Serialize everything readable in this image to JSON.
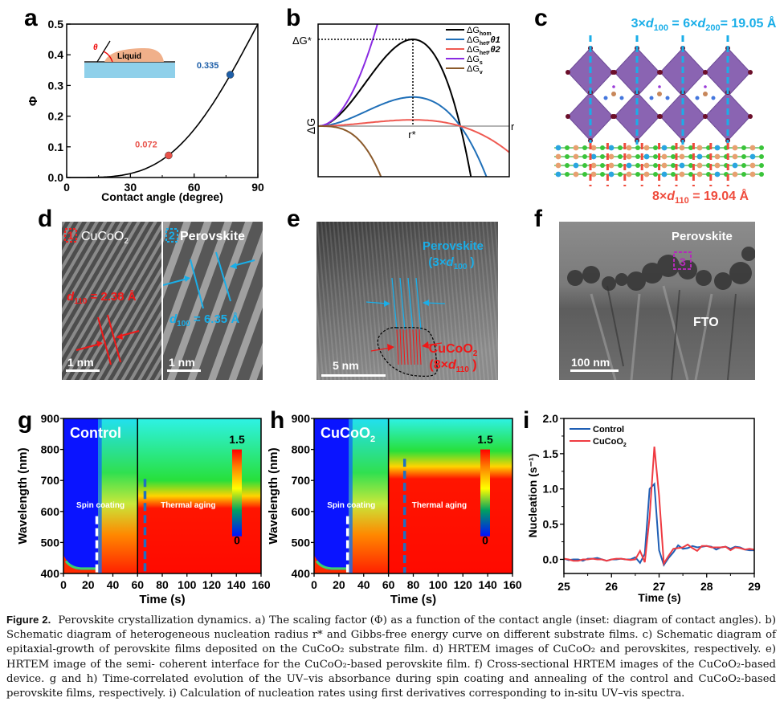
{
  "figure": {
    "panel_labels": {
      "a": "a",
      "b": "b",
      "c": "c",
      "d": "d",
      "e": "e",
      "f": "f",
      "g": "g",
      "h": "h",
      "i": "i"
    },
    "caption": {
      "title": "Figure 2.",
      "lines": [
        "Perovskite crystallization dynamics. a) The scaling factor (Φ) as a function of the contact angle (inset: diagram of contact angles). b) Schematic",
        "diagram of heterogeneous nucleation radius r* and Gibbs-free energy curve on different substrate films. c) Schematic diagram of epitaxial-growth of",
        "perovskite films deposited on the CuCoO₂ substrate film. d) HRTEM images of CuCoO₂ and perovskites, respectively. e) HRTEM image of the semi-",
        "coherent interface for the CuCoO₂-based perovskite film. f) Cross-sectional HRTEM images of the CuCoO₂-based device. g and h) Time-correlated",
        "evolution of the UV–vis absorbance during spin coating and annealing of the control and CuCoO₂-based perovskite films, respectively. i) Calculation of",
        "nucleation rates using first derivatives corresponding to in-situ UV–vis spectra."
      ]
    }
  },
  "chart_data": [
    {
      "id": "a",
      "type": "line",
      "title": "",
      "xlabel": "Contact angle (degree)",
      "ylabel": "Φ",
      "xlim": [
        0,
        90
      ],
      "ylim": [
        0,
        0.5
      ],
      "xticks": [
        "0",
        "30",
        "60",
        "90"
      ],
      "yticks": [
        "0.0",
        "0.1",
        "0.2",
        "0.3",
        "0.4",
        "0.5"
      ],
      "xtick_values": [
        0,
        30,
        60,
        90
      ],
      "ytick_values": [
        0,
        0.1,
        0.2,
        0.3,
        0.4,
        0.5
      ],
      "curve": "Φ = (2+cosθ)(1−cosθ)²/4",
      "points": [
        {
          "x": 48,
          "y": 0.072,
          "label": "0.072",
          "color": "#e8524a"
        },
        {
          "x": 77,
          "y": 0.335,
          "label": "0.335",
          "color": "#1f5fa8"
        }
      ],
      "inset": {
        "theta_label": "θ",
        "liquid_label": "Liquid"
      }
    },
    {
      "id": "b",
      "type": "line",
      "title": "",
      "xlabel": "r",
      "ylabel": "ΔG",
      "annotations": {
        "peak_label": "ΔG*",
        "radius_label": "r*"
      },
      "series": [
        {
          "name": "ΔG_hom",
          "label_main": "ΔG",
          "label_sub": "hom",
          "label_extra": "",
          "color": "#000000",
          "peak": 1.0
        },
        {
          "name": "ΔG_het,θ1",
          "label_main": "ΔG",
          "label_sub": "het",
          "label_extra": ",θ1",
          "color": "#1f6fb8",
          "peak": 0.335
        },
        {
          "name": "ΔG_het,θ2",
          "label_main": "ΔG",
          "label_sub": "het",
          "label_extra": ",θ2",
          "color": "#ef5a52",
          "peak": 0.072
        },
        {
          "name": "ΔG_s",
          "label_main": "ΔG",
          "label_sub": "s",
          "label_extra": "",
          "color": "#8a2be2"
        },
        {
          "name": "ΔG_v",
          "label_main": "ΔG",
          "label_sub": "v",
          "label_extra": "",
          "color": "#8b5a2b"
        }
      ],
      "legend_position": "top-right"
    },
    {
      "id": "g",
      "type": "heatmap",
      "sample_label": "Control",
      "xlabel": "Time (s)",
      "ylabel": "Wavelength (nm)",
      "xlim": [
        0,
        160
      ],
      "ylim": [
        400,
        900
      ],
      "xticks": [
        "0",
        "20",
        "40",
        "60",
        "80",
        "100",
        "120",
        "140",
        "160"
      ],
      "yticks": [
        "400",
        "500",
        "600",
        "700",
        "800",
        "900"
      ],
      "colorbar": {
        "min": "0",
        "max": "1.5"
      },
      "regions": [
        "Spin coating",
        "Thermal aging"
      ],
      "divider_time": 60,
      "spin_marker_time": 27,
      "aging_marker_time": 66,
      "absorption_onset_aging_nm": 650
    },
    {
      "id": "h",
      "type": "heatmap",
      "sample_label": "CuCoO",
      "sample_sub": "2",
      "xlabel": "Time (s)",
      "ylabel": "Wavelength (nm)",
      "xlim": [
        0,
        160
      ],
      "ylim": [
        400,
        900
      ],
      "xticks": [
        "0",
        "20",
        "40",
        "60",
        "80",
        "100",
        "120",
        "140",
        "160"
      ],
      "yticks": [
        "400",
        "500",
        "600",
        "700",
        "800",
        "900"
      ],
      "colorbar": {
        "min": "0",
        "max": "1.5"
      },
      "regions": [
        "Spin coating",
        "Thermal aging"
      ],
      "divider_time": 60,
      "spin_marker_time": 27,
      "aging_marker_time": 73,
      "absorption_onset_aging_nm": 745
    },
    {
      "id": "i",
      "type": "line",
      "xlabel": "Time (s)",
      "ylabel": "Nucleation (s⁻¹)",
      "xlim": [
        25,
        29
      ],
      "ylim": [
        -0.2,
        2.0
      ],
      "xticks": [
        "25",
        "26",
        "27",
        "28",
        "29"
      ],
      "yticks": [
        "0.0",
        "0.5",
        "1.0",
        "1.5",
        "2.0"
      ],
      "xtick_values": [
        25,
        26,
        27,
        28,
        29
      ],
      "ytick_values": [
        0,
        0.5,
        1.0,
        1.5,
        2.0
      ],
      "legend_position": "top-left",
      "x": [
        25.0,
        25.1,
        25.2,
        25.3,
        25.4,
        25.5,
        25.6,
        25.7,
        25.8,
        25.9,
        26.0,
        26.1,
        26.2,
        26.3,
        26.4,
        26.5,
        26.6,
        26.7,
        26.8,
        26.9,
        27.0,
        27.1,
        27.2,
        27.3,
        27.4,
        27.5,
        27.6,
        27.7,
        27.8,
        27.9,
        28.0,
        28.1,
        28.2,
        28.3,
        28.4,
        28.5,
        28.6,
        28.7,
        28.8,
        28.9,
        29.0
      ],
      "series": [
        {
          "name": "Control",
          "color": "#1f5fb5",
          "values": [
            0.01,
            -0.01,
            0.0,
            0.0,
            -0.02,
            0.01,
            0.01,
            0.02,
            0.0,
            -0.02,
            0.0,
            0.0,
            0.01,
            0.0,
            0.0,
            0.03,
            -0.05,
            0.08,
            1.0,
            1.07,
            0.13,
            -0.08,
            0.02,
            0.1,
            0.2,
            0.15,
            0.16,
            0.19,
            0.17,
            0.18,
            0.19,
            0.18,
            0.14,
            0.17,
            0.18,
            0.15,
            0.18,
            0.17,
            0.14,
            0.13,
            0.13
          ]
        },
        {
          "name": "CuCoO₂",
          "name_main": "CuCoO",
          "name_sub": "2",
          "color": "#ef3b42",
          "values": [
            0.01,
            0.0,
            -0.02,
            -0.02,
            0.0,
            0.0,
            0.01,
            0.0,
            0.0,
            -0.02,
            0.0,
            0.01,
            0.01,
            0.0,
            -0.01,
            0.0,
            0.12,
            -0.04,
            0.6,
            1.6,
            0.9,
            -0.06,
            0.05,
            0.15,
            0.16,
            0.17,
            0.21,
            0.16,
            0.12,
            0.19,
            0.19,
            0.17,
            0.17,
            0.17,
            0.18,
            0.13,
            0.17,
            0.16,
            0.14,
            0.15,
            0.14
          ]
        }
      ]
    }
  ],
  "panel_c": {
    "top_label": {
      "part1": "3×",
      "d1": "d",
      "sub1": "100",
      "part2": " = 6×",
      "d2": "d",
      "sub2": "200",
      "part3": "= 19.05 Å"
    },
    "bottom_label": {
      "part1": "8×",
      "d1": "d",
      "sub1": "110",
      "part3": " = 19.04 Å"
    },
    "colors": {
      "perovskite": "#1aaee8",
      "substrate": "#ef4b3c"
    }
  },
  "panel_d": {
    "left": {
      "box_num": "1",
      "title": "CuCoO",
      "title_sub": "2",
      "spacing_d": "d",
      "spacing_sub": "110",
      "spacing_val": " = 2.38 Å",
      "scale": "1 nm"
    },
    "right": {
      "box_num": "2",
      "title": "Perovskite",
      "spacing_d": "d",
      "spacing_sub": "100",
      "spacing_val": " = 6.35 Å",
      "scale": "1 nm"
    }
  },
  "panel_e": {
    "perovskite": "Perovskite",
    "perov_sub_label": "(3×",
    "perov_d": "d",
    "perov_sub": "100",
    "close": " )",
    "cucoo": "CuCoO",
    "cucoo_sub": "2",
    "cucoo_sub_label": "(8×",
    "cucoo_d": "d",
    "cucoo_sub2": "110",
    "scale": "5 nm"
  },
  "panel_f": {
    "perovskite": "Perovskite",
    "fto": "FTO",
    "box_num": "3",
    "scale": "100 nm"
  }
}
